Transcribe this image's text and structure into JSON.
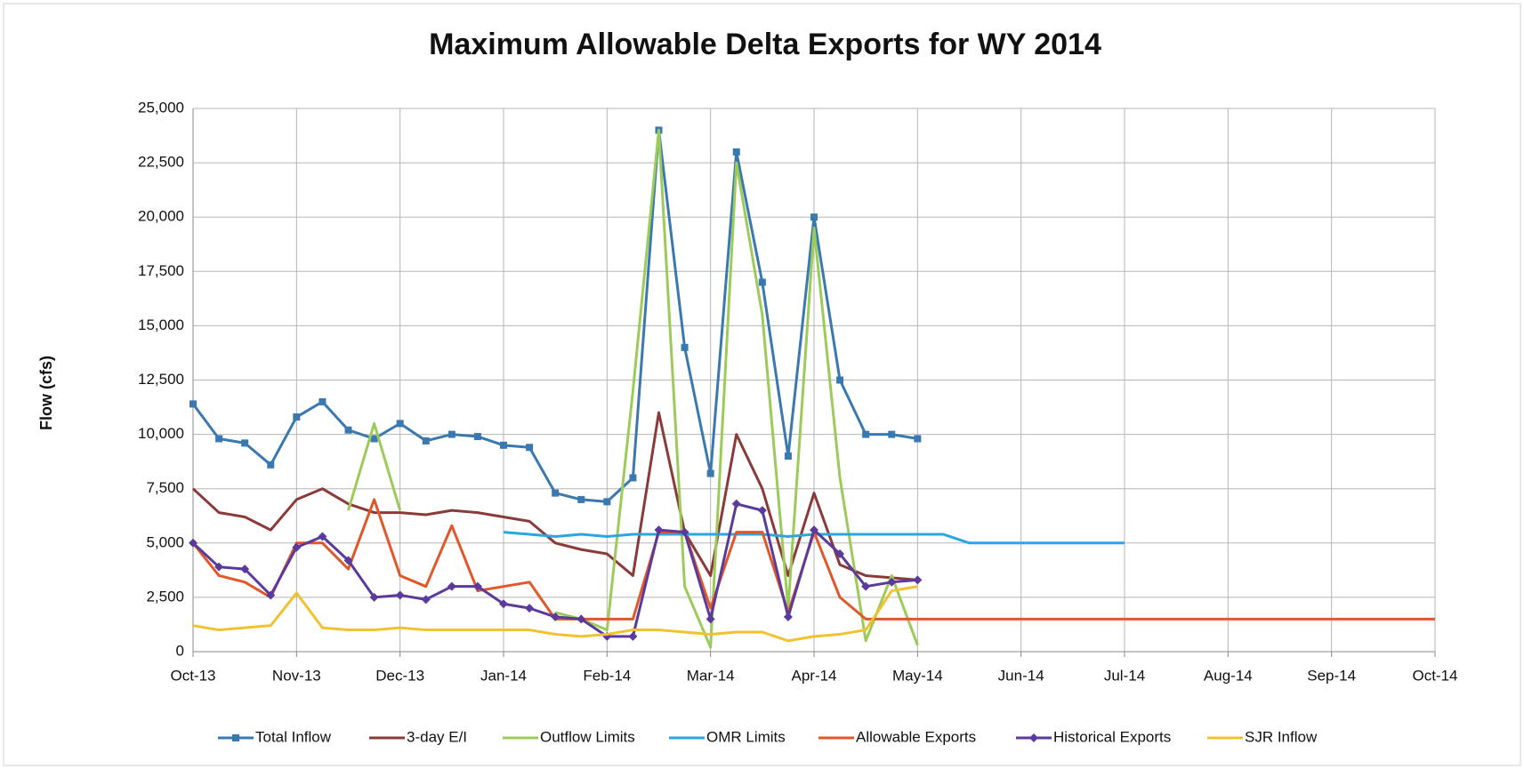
{
  "chart_data": {
    "type": "line",
    "title": "Maximum Allowable Delta Exports for WY 2014",
    "y_label": "Flow (cfs)",
    "categories": [
      "Oct-13",
      null,
      null,
      null,
      "Nov-13",
      null,
      null,
      null,
      "Dec-13",
      null,
      null,
      null,
      "Jan-14",
      null,
      null,
      null,
      "Feb-14",
      null,
      null,
      null,
      "Mar-14",
      null,
      null,
      null,
      "Apr-14",
      null,
      null,
      null,
      "May-14",
      null,
      null,
      null,
      "Jun-14",
      null,
      null,
      null,
      "Jul-14",
      null,
      null,
      null,
      "Aug-14",
      null,
      null,
      null,
      "Sep-14",
      null,
      null,
      null,
      "Oct-14"
    ],
    "ylim": [
      0,
      25000
    ],
    "yticks": [
      0,
      {
        "value": 2500,
        "label": "2,500"
      },
      {
        "value": 5000,
        "label": "5,000"
      },
      {
        "value": 7500,
        "label": "7,500"
      },
      {
        "value": 10000,
        "label": "10,000"
      },
      {
        "value": 12500,
        "label": "12,500"
      },
      {
        "value": 15000,
        "label": "15,000"
      },
      {
        "value": 17500,
        "label": "17,500"
      },
      {
        "value": 20000,
        "label": "20,000"
      },
      {
        "value": 22500,
        "label": "22,500"
      },
      {
        "value": 25000,
        "label": "25,000"
      }
    ],
    "grid": true,
    "legend": "bottom",
    "series": [
      {
        "name": "Total Inflow",
        "color": "#3a78b0",
        "marker": "square",
        "values": [
          11400,
          9800,
          9600,
          8600,
          10800,
          11500,
          10200,
          9800,
          10500,
          9700,
          10000,
          9900,
          9500,
          9400,
          7300,
          7000,
          6900,
          8000,
          24000,
          14000,
          8200,
          23000,
          17000,
          9000,
          20000,
          12500,
          10000,
          10000,
          9800,
          null,
          null,
          null,
          null,
          null,
          null,
          null,
          null,
          null,
          null,
          null,
          null,
          null,
          null,
          null,
          null,
          null,
          null,
          null,
          null
        ]
      },
      {
        "name": "3-day E/I",
        "color": "#8b3a3a",
        "values": [
          7500,
          6400,
          6200,
          5600,
          7000,
          7500,
          6800,
          6400,
          6400,
          6300,
          6500,
          6400,
          6200,
          6000,
          5000,
          4700,
          4500,
          3500,
          11000,
          5500,
          3500,
          10000,
          7500,
          3500,
          7300,
          4000,
          3500,
          3400,
          3300,
          null,
          null,
          null,
          null,
          null,
          null,
          null,
          null,
          null,
          null,
          null,
          null,
          null,
          null,
          null,
          null,
          null,
          null,
          null,
          null
        ]
      },
      {
        "name": "Outflow Limits",
        "color": "#9ccb59",
        "values": [
          null,
          null,
          null,
          null,
          null,
          null,
          6500,
          10500,
          6500,
          null,
          null,
          null,
          null,
          null,
          1800,
          1500,
          1000,
          12000,
          24000,
          3000,
          200,
          22500,
          15500,
          2000,
          19500,
          8000,
          500,
          3500,
          300,
          null,
          null,
          null,
          null,
          null,
          null,
          null,
          null,
          null,
          null,
          null,
          null,
          null,
          null,
          null,
          null,
          null,
          null,
          null,
          null
        ]
      },
      {
        "name": "OMR Limits",
        "color": "#2aa7e0",
        "values": [
          null,
          null,
          null,
          null,
          null,
          null,
          null,
          null,
          null,
          null,
          null,
          null,
          5500,
          5400,
          5300,
          5400,
          5300,
          5400,
          5400,
          5400,
          5400,
          5400,
          5400,
          5300,
          5400,
          5400,
          5400,
          5400,
          5400,
          5400,
          5000,
          5000,
          5000,
          5000,
          5000,
          5000,
          5000,
          null,
          null,
          null,
          null,
          null,
          null,
          null,
          null,
          null,
          null,
          null,
          null
        ]
      },
      {
        "name": "Allowable Exports",
        "color": "#e0582a",
        "values": [
          5000,
          3500,
          3200,
          2500,
          5000,
          5000,
          3800,
          7000,
          3500,
          3000,
          5800,
          2800,
          3000,
          3200,
          1500,
          1500,
          1500,
          1500,
          5500,
          5500,
          2000,
          5500,
          5500,
          1800,
          5500,
          2500,
          1500,
          1500,
          1500,
          1500,
          1500,
          1500,
          1500,
          1500,
          1500,
          1500,
          1500,
          1500,
          1500,
          1500,
          1500,
          1500,
          1500,
          1500,
          1500,
          1500,
          1500,
          1500,
          1500
        ]
      },
      {
        "name": "Historical Exports",
        "color": "#5a3a9a",
        "marker": "diamond",
        "values": [
          5000,
          3900,
          3800,
          2600,
          4800,
          5300,
          4200,
          2500,
          2600,
          2400,
          3000,
          3000,
          2200,
          2000,
          1600,
          1500,
          700,
          700,
          5600,
          5500,
          1500,
          6800,
          6500,
          1600,
          5600,
          4500,
          3000,
          3200,
          3300,
          null,
          null,
          null,
          null,
          null,
          null,
          null,
          null,
          null,
          null,
          null,
          null,
          null,
          null,
          null,
          null,
          null,
          null,
          null,
          null
        ]
      },
      {
        "name": "SJR Inflow",
        "color": "#f2c12e",
        "values": [
          1200,
          1000,
          1100,
          1200,
          2700,
          1100,
          1000,
          1000,
          1100,
          1000,
          1000,
          1000,
          1000,
          1000,
          800,
          700,
          800,
          1000,
          1000,
          900,
          800,
          900,
          900,
          500,
          700,
          800,
          1000,
          2800,
          3000,
          null,
          null,
          null,
          null,
          null,
          null,
          null,
          null,
          null,
          null,
          null,
          null,
          null,
          null,
          null,
          null,
          null,
          null,
          null,
          null
        ]
      }
    ]
  }
}
